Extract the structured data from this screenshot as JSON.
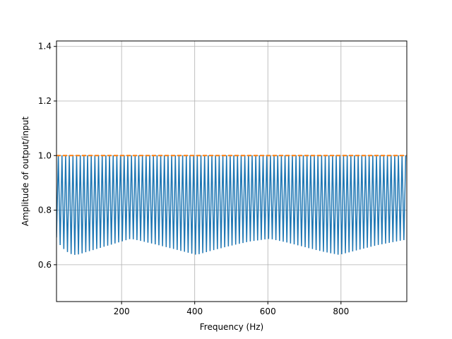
{
  "chart_data": {
    "type": "line",
    "title": "",
    "xlabel": "Frequency (Hz)",
    "ylabel": "Amplitude of output/input",
    "xlim": [
      22,
      980
    ],
    "ylim": [
      0.465,
      1.42
    ],
    "x_ticks": [
      200,
      400,
      600,
      800
    ],
    "x_tick_labels": [
      "200",
      "400",
      "600",
      "800"
    ],
    "y_ticks": [
      0.6,
      0.8,
      1.0,
      1.2,
      1.4
    ],
    "y_tick_labels": [
      "0.6",
      "0.8",
      "1.0",
      "1.2",
      "1.4"
    ],
    "grid": true,
    "legend": "none",
    "colors": {
      "series_blue": "#1f77b4",
      "series_orange": "#ff7f0e",
      "grid": "#b0b0b0"
    },
    "series": [
      {
        "style": "solid",
        "color": "#1f77b4",
        "x_start": 22,
        "x_step": 10,
        "x_end": 980,
        "peak_value": 1.0,
        "trough_envelope": {
          "x": [
            22,
            30,
            40,
            50,
            60,
            70,
            80,
            100,
            150,
            200,
            225,
            250,
            300,
            350,
            405,
            450,
            500,
            550,
            605,
            650,
            700,
            750,
            795,
            850,
            900,
            950,
            980
          ],
          "y": [
            0.7,
            0.675,
            0.66,
            0.648,
            0.64,
            0.636,
            0.637,
            0.645,
            0.665,
            0.685,
            0.695,
            0.688,
            0.672,
            0.655,
            0.636,
            0.653,
            0.67,
            0.685,
            0.695,
            0.682,
            0.665,
            0.648,
            0.636,
            0.655,
            0.672,
            0.685,
            0.692
          ]
        }
      },
      {
        "style": "dashed",
        "color": "#ff7f0e",
        "x": [
          22,
          980
        ],
        "y": [
          1.0,
          1.0
        ]
      }
    ]
  }
}
